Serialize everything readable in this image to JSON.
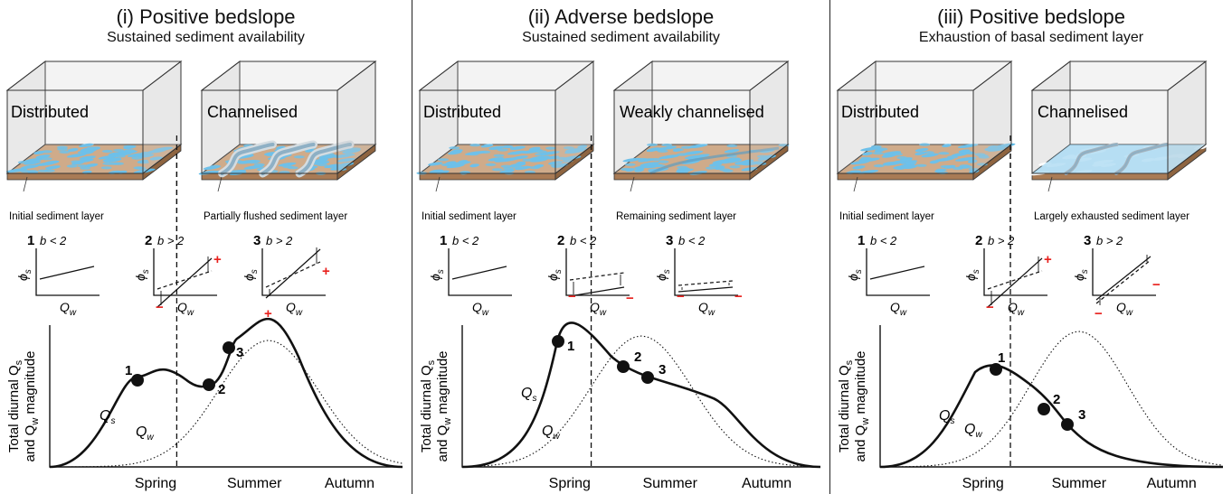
{
  "panels": [
    {
      "title": "(i) Positive bedslope",
      "subtitle": "Sustained sediment availability",
      "left_box": {
        "regime": "Distributed",
        "layer": "Initial sediment layer"
      },
      "right_box": {
        "regime": "Channelised",
        "layer": "Partially flushed sediment layer"
      },
      "minis": [
        {
          "num": "1",
          "cond": "b < 2"
        },
        {
          "num": "2",
          "cond": "b > 2",
          "signs": [
            "+",
            "−"
          ]
        },
        {
          "num": "3",
          "cond": "b > 2",
          "signs": [
            "+",
            "+"
          ]
        }
      ],
      "points": [
        "1",
        "2",
        "3"
      ]
    },
    {
      "title": "(ii) Adverse bedslope",
      "subtitle": "Sustained sediment availability",
      "left_box": {
        "regime": "Distributed",
        "layer": "Initial sediment layer"
      },
      "right_box": {
        "regime": "Weakly channelised",
        "layer": "Remaining sediment layer"
      },
      "minis": [
        {
          "num": "1",
          "cond": "b < 2"
        },
        {
          "num": "2",
          "cond": "b < 2",
          "signs": [
            "−",
            "−"
          ]
        },
        {
          "num": "3",
          "cond": "b < 2",
          "signs": [
            "−",
            "−"
          ]
        }
      ],
      "points": [
        "1",
        "2",
        "3"
      ]
    },
    {
      "title": "(iii) Positive bedslope",
      "subtitle": "Exhaustion of basal sediment layer",
      "left_box": {
        "regime": "Distributed",
        "layer": "Initial sediment layer"
      },
      "right_box": {
        "regime": "Channelised",
        "layer": "Largely exhausted sediment layer"
      },
      "minis": [
        {
          "num": "1",
          "cond": "b < 2"
        },
        {
          "num": "2",
          "cond": "b > 2",
          "signs": [
            "+",
            "−"
          ]
        },
        {
          "num": "3",
          "cond": "b > 2",
          "signs": [
            "−",
            "−"
          ]
        }
      ],
      "points": [
        "1",
        "2",
        "3"
      ]
    }
  ],
  "axes": {
    "y_label_line1": "Total diurnal Q",
    "y_label_sub1": "s",
    "y_label_line2": "and Q",
    "y_label_sub2": "w",
    "y_label_tail": " magnitude",
    "phi": "ϕ",
    "phi_sub": "s",
    "q": "Q",
    "q_sub": "w",
    "qs_sub": "s",
    "seasons": [
      "Spring",
      "Summer",
      "Autumn"
    ]
  },
  "colors": {
    "water": "#5bb8e6",
    "sediment": "#c9a07a",
    "sign": "#e8201c",
    "box_wall": "#e6e6e6"
  }
}
